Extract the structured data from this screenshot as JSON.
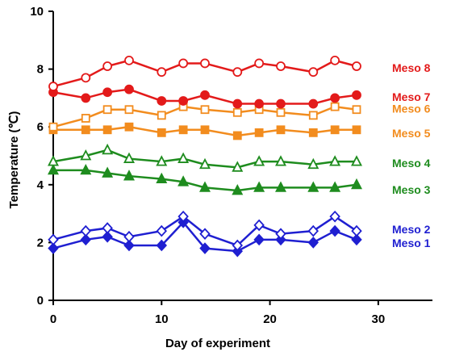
{
  "chart_data": {
    "type": "line",
    "title": "",
    "xlabel": "Day of experiment",
    "ylabel": "Temperature (℃)",
    "xlim": [
      0,
      35
    ],
    "ylim": [
      0,
      10
    ],
    "xticks": [
      0,
      10,
      20,
      30
    ],
    "yticks": [
      0,
      2,
      4,
      6,
      8,
      10
    ],
    "grid": false,
    "legend": "right-of-lines",
    "x": [
      0,
      3,
      5,
      7,
      10,
      12,
      14,
      17,
      19,
      21,
      24,
      26,
      28
    ],
    "series": [
      {
        "name": "Meso 1",
        "color": "#1f1fd1",
        "marker": "diamond",
        "filled": true,
        "values": [
          1.8,
          2.1,
          2.2,
          1.9,
          1.9,
          2.7,
          1.8,
          1.7,
          2.1,
          2.1,
          2.0,
          2.4,
          2.1
        ]
      },
      {
        "name": "Meso 2",
        "color": "#1f1fd1",
        "marker": "diamond",
        "filled": false,
        "values": [
          2.1,
          2.4,
          2.5,
          2.2,
          2.4,
          2.9,
          2.3,
          1.9,
          2.6,
          2.3,
          2.4,
          2.9,
          2.4
        ]
      },
      {
        "name": "Meso 3",
        "color": "#1e8c1e",
        "marker": "triangle",
        "filled": true,
        "values": [
          4.5,
          4.5,
          4.4,
          4.3,
          4.2,
          4.1,
          3.9,
          3.8,
          3.9,
          3.9,
          3.9,
          3.9,
          4.0
        ]
      },
      {
        "name": "Meso 4",
        "color": "#1e8c1e",
        "marker": "triangle",
        "filled": false,
        "values": [
          4.8,
          5.0,
          5.2,
          4.9,
          4.8,
          4.9,
          4.7,
          4.6,
          4.8,
          4.8,
          4.7,
          4.8,
          4.8
        ]
      },
      {
        "name": "Meso 5",
        "color": "#f28c1e",
        "marker": "square",
        "filled": true,
        "values": [
          5.9,
          5.9,
          5.9,
          6.0,
          5.8,
          5.9,
          5.9,
          5.7,
          5.8,
          5.9,
          5.8,
          5.9,
          5.9
        ]
      },
      {
        "name": "Meso 6",
        "color": "#f28c1e",
        "marker": "square",
        "filled": false,
        "values": [
          6.0,
          6.3,
          6.6,
          6.6,
          6.4,
          6.7,
          6.6,
          6.5,
          6.6,
          6.5,
          6.4,
          6.7,
          6.6
        ]
      },
      {
        "name": "Meso 7",
        "color": "#e31a1a",
        "marker": "circle",
        "filled": true,
        "values": [
          7.2,
          7.0,
          7.2,
          7.3,
          6.9,
          6.9,
          7.1,
          6.8,
          6.8,
          6.8,
          6.8,
          7.0,
          7.1
        ]
      },
      {
        "name": "Meso 8",
        "color": "#e31a1a",
        "marker": "circle",
        "filled": false,
        "values": [
          7.4,
          7.7,
          8.1,
          8.3,
          7.9,
          8.2,
          8.2,
          7.9,
          8.2,
          8.1,
          7.9,
          8.3,
          8.1
        ]
      }
    ]
  }
}
